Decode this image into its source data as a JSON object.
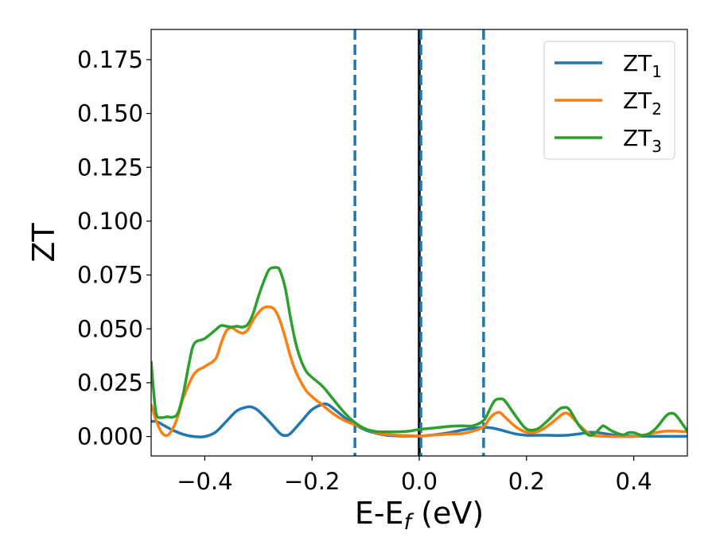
{
  "chart_data": {
    "type": "line",
    "xlabel": "E-E",
    "xlabel_subscript": "f",
    "xlabel_suffix": " (eV)",
    "ylabel": "ZT",
    "xlim": [
      -0.5,
      0.5
    ],
    "ylim": [
      -0.009,
      0.189
    ],
    "x_ticks": [
      -0.4,
      -0.2,
      0.0,
      0.2,
      0.4
    ],
    "x_tick_labels": [
      "−0.4",
      "−0.2",
      "0.0",
      "0.2",
      "0.4"
    ],
    "y_ticks": [
      0.0,
      0.025,
      0.05,
      0.075,
      0.1,
      0.125,
      0.15,
      0.175
    ],
    "y_tick_labels": [
      "0.000",
      "0.025",
      "0.050",
      "0.075",
      "0.100",
      "0.125",
      "0.150",
      "0.175"
    ],
    "grid": false,
    "legend_position": "top-right",
    "vertical_lines": [
      {
        "x": -0.12,
        "style": "dashed",
        "color": "#1f77b4"
      },
      {
        "x": 0.0,
        "style": "solid",
        "color": "#000000"
      },
      {
        "x": 0.003,
        "style": "dashed",
        "color": "#1f77b4"
      },
      {
        "x": 0.12,
        "style": "dashed",
        "color": "#1f77b4"
      }
    ],
    "series": [
      {
        "name": "ZT",
        "subscript": "1",
        "color": "#1f77b4",
        "x": [
          -0.5,
          -0.49,
          -0.475,
          -0.46,
          -0.44,
          -0.42,
          -0.4,
          -0.38,
          -0.36,
          -0.34,
          -0.32,
          -0.31,
          -0.3,
          -0.28,
          -0.26,
          -0.25,
          -0.24,
          -0.22,
          -0.2,
          -0.18,
          -0.17,
          -0.16,
          -0.14,
          -0.12,
          -0.1,
          -0.08,
          -0.06,
          -0.04,
          -0.02,
          0.0,
          0.02,
          0.04,
          0.06,
          0.08,
          0.1,
          0.12,
          0.14,
          0.16,
          0.18,
          0.2,
          0.22,
          0.24,
          0.26,
          0.28,
          0.3,
          0.32,
          0.34,
          0.36,
          0.38,
          0.4,
          0.45,
          0.5
        ],
        "values": [
          0.007,
          0.007,
          0.005,
          0.003,
          0.001,
          0.0,
          0.0,
          0.002,
          0.007,
          0.012,
          0.0138,
          0.0135,
          0.012,
          0.007,
          0.0015,
          0.0005,
          0.0015,
          0.007,
          0.0125,
          0.015,
          0.0148,
          0.013,
          0.009,
          0.0055,
          0.003,
          0.0015,
          0.0006,
          0.0003,
          0.0002,
          0.0002,
          0.0006,
          0.0012,
          0.002,
          0.003,
          0.0038,
          0.0043,
          0.0038,
          0.0025,
          0.0012,
          0.0006,
          0.0006,
          0.0006,
          0.0005,
          0.0007,
          0.0013,
          0.002,
          0.0016,
          0.0008,
          0.0004,
          0.0002,
          0.0001,
          0.0001
        ]
      },
      {
        "name": "ZT",
        "subscript": "2",
        "color": "#ff7f0e",
        "x": [
          -0.5,
          -0.49,
          -0.48,
          -0.47,
          -0.46,
          -0.45,
          -0.44,
          -0.42,
          -0.4,
          -0.38,
          -0.37,
          -0.36,
          -0.35,
          -0.34,
          -0.33,
          -0.32,
          -0.31,
          -0.3,
          -0.29,
          -0.28,
          -0.27,
          -0.26,
          -0.25,
          -0.24,
          -0.23,
          -0.22,
          -0.21,
          -0.2,
          -0.18,
          -0.16,
          -0.14,
          -0.12,
          -0.1,
          -0.08,
          -0.06,
          -0.04,
          -0.02,
          0.0,
          0.02,
          0.04,
          0.06,
          0.08,
          0.1,
          0.12,
          0.13,
          0.14,
          0.15,
          0.16,
          0.18,
          0.2,
          0.22,
          0.24,
          0.26,
          0.27,
          0.28,
          0.3,
          0.32,
          0.34,
          0.36,
          0.38,
          0.4,
          0.42,
          0.44,
          0.46,
          0.48,
          0.5
        ],
        "values": [
          0.015,
          0.007,
          0.0018,
          0.0005,
          0.0035,
          0.0095,
          0.018,
          0.029,
          0.0325,
          0.036,
          0.043,
          0.049,
          0.0505,
          0.049,
          0.048,
          0.0495,
          0.054,
          0.0575,
          0.0598,
          0.0602,
          0.059,
          0.054,
          0.046,
          0.037,
          0.03,
          0.025,
          0.021,
          0.0185,
          0.0145,
          0.0105,
          0.0075,
          0.0055,
          0.0035,
          0.0018,
          0.001,
          0.0006,
          0.0004,
          0.0002,
          0.0006,
          0.0009,
          0.0012,
          0.0014,
          0.0025,
          0.0045,
          0.008,
          0.0105,
          0.0112,
          0.009,
          0.0045,
          0.002,
          0.0022,
          0.005,
          0.009,
          0.0108,
          0.0102,
          0.005,
          0.0008,
          0.0002,
          0.0,
          0.0,
          0.0,
          0.0008,
          0.0018,
          0.0025,
          0.0025,
          0.0022
        ]
      },
      {
        "name": "ZT",
        "subscript": "3",
        "color": "#2ca02c",
        "x": [
          -0.5,
          -0.495,
          -0.49,
          -0.48,
          -0.47,
          -0.46,
          -0.45,
          -0.44,
          -0.43,
          -0.42,
          -0.4,
          -0.38,
          -0.37,
          -0.36,
          -0.35,
          -0.34,
          -0.33,
          -0.32,
          -0.31,
          -0.3,
          -0.29,
          -0.28,
          -0.27,
          -0.265,
          -0.26,
          -0.25,
          -0.24,
          -0.23,
          -0.22,
          -0.21,
          -0.2,
          -0.18,
          -0.16,
          -0.14,
          -0.12,
          -0.1,
          -0.08,
          -0.06,
          -0.04,
          -0.02,
          0.0,
          0.02,
          0.04,
          0.06,
          0.08,
          0.1,
          0.12,
          0.13,
          0.14,
          0.15,
          0.16,
          0.18,
          0.2,
          0.22,
          0.24,
          0.26,
          0.27,
          0.28,
          0.3,
          0.32,
          0.34,
          0.345,
          0.36,
          0.38,
          0.39,
          0.4,
          0.42,
          0.44,
          0.46,
          0.47,
          0.48,
          0.5
        ],
        "values": [
          0.035,
          0.02,
          0.01,
          0.0088,
          0.0092,
          0.009,
          0.011,
          0.02,
          0.033,
          0.043,
          0.0455,
          0.0495,
          0.0515,
          0.0512,
          0.0508,
          0.0512,
          0.0508,
          0.052,
          0.057,
          0.065,
          0.072,
          0.0775,
          0.0785,
          0.0784,
          0.0772,
          0.069,
          0.055,
          0.043,
          0.035,
          0.03,
          0.0275,
          0.0232,
          0.0172,
          0.0112,
          0.0065,
          0.0035,
          0.0023,
          0.0022,
          0.0022,
          0.0025,
          0.0033,
          0.0038,
          0.0043,
          0.0048,
          0.005,
          0.005,
          0.0075,
          0.0118,
          0.0165,
          0.0175,
          0.0165,
          0.0095,
          0.0035,
          0.0035,
          0.0075,
          0.0125,
          0.0135,
          0.0125,
          0.0045,
          0.0005,
          0.0045,
          0.0048,
          0.0025,
          0.0008,
          0.0018,
          0.0018,
          0.0005,
          0.0035,
          0.0095,
          0.0108,
          0.0095,
          0.0025
        ]
      }
    ]
  }
}
